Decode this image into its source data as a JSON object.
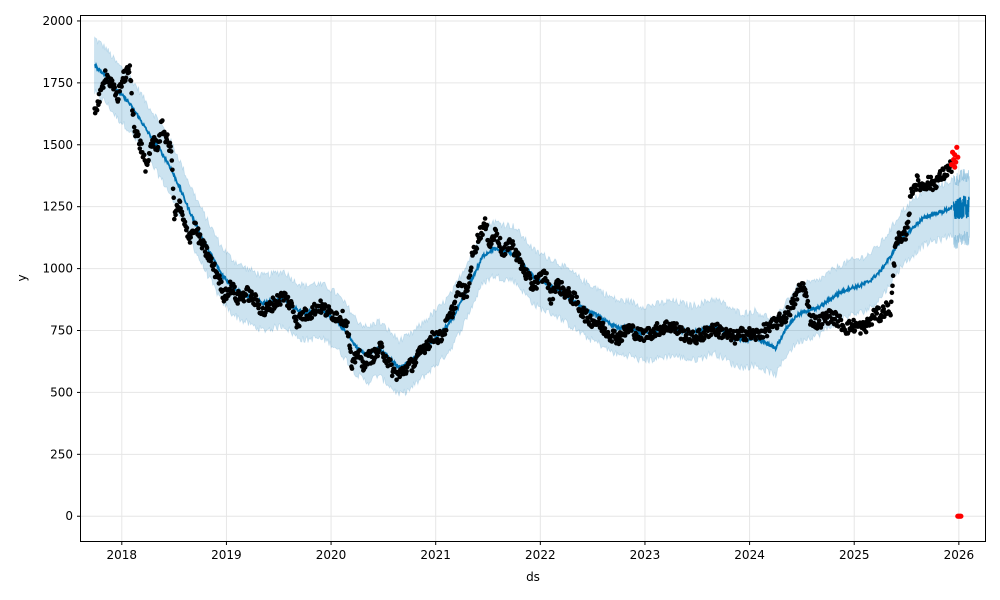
{
  "chart_data": {
    "type": "scatter",
    "title": "",
    "xlabel": "ds",
    "ylabel": "y",
    "xlim": [
      2017.61,
      2026.25
    ],
    "ylim": [
      -100,
      2020
    ],
    "grid": true,
    "x_ticks": [
      2018,
      2019,
      2020,
      2021,
      2022,
      2023,
      2024,
      2025,
      2026
    ],
    "x_tick_labels": [
      "2018",
      "2019",
      "2020",
      "2021",
      "2022",
      "2023",
      "2024",
      "2025",
      "2026"
    ],
    "y_ticks": [
      0,
      250,
      500,
      750,
      1000,
      1250,
      1500,
      1750,
      2000
    ],
    "y_tick_labels": [
      "0",
      "250",
      "500",
      "750",
      "1000",
      "1250",
      "1500",
      "1750",
      "2000"
    ],
    "colors": {
      "observed": "#000000",
      "outliers": "#ff0000",
      "forecast_line": "#0072b2",
      "interval_fill": "#0072b2",
      "grid": "#e6e6e6"
    },
    "observed_anchors": [
      [
        2017.74,
        1640
      ],
      [
        2017.8,
        1700
      ],
      [
        2017.84,
        1790
      ],
      [
        2017.9,
        1740
      ],
      [
        2017.96,
        1690
      ],
      [
        2018.0,
        1760
      ],
      [
        2018.05,
        1790
      ],
      [
        2018.08,
        1800
      ],
      [
        2018.1,
        1650
      ],
      [
        2018.13,
        1560
      ],
      [
        2018.2,
        1470
      ],
      [
        2018.24,
        1390
      ],
      [
        2018.28,
        1510
      ],
      [
        2018.35,
        1500
      ],
      [
        2018.38,
        1580
      ],
      [
        2018.44,
        1510
      ],
      [
        2018.48,
        1460
      ],
      [
        2018.5,
        1210
      ],
      [
        2018.55,
        1260
      ],
      [
        2018.6,
        1170
      ],
      [
        2018.65,
        1130
      ],
      [
        2018.7,
        1170
      ],
      [
        2018.76,
        1100
      ],
      [
        2018.82,
        1060
      ],
      [
        2018.88,
        1000
      ],
      [
        2018.93,
        960
      ],
      [
        2018.97,
        890
      ],
      [
        2019.05,
        930
      ],
      [
        2019.1,
        880
      ],
      [
        2019.2,
        900
      ],
      [
        2019.3,
        860
      ],
      [
        2019.35,
        820
      ],
      [
        2019.45,
        860
      ],
      [
        2019.55,
        890
      ],
      [
        2019.62,
        850
      ],
      [
        2019.68,
        780
      ],
      [
        2019.72,
        810
      ],
      [
        2019.8,
        820
      ],
      [
        2019.88,
        850
      ],
      [
        2019.95,
        830
      ],
      [
        2020.05,
        810
      ],
      [
        2020.12,
        800
      ],
      [
        2020.16,
        760
      ],
      [
        2020.2,
        590
      ],
      [
        2020.25,
        670
      ],
      [
        2020.3,
        610
      ],
      [
        2020.35,
        640
      ],
      [
        2020.42,
        650
      ],
      [
        2020.48,
        680
      ],
      [
        2020.55,
        620
      ],
      [
        2020.6,
        580
      ],
      [
        2020.65,
        570
      ],
      [
        2020.72,
        600
      ],
      [
        2020.8,
        620
      ],
      [
        2020.88,
        680
      ],
      [
        2020.95,
        710
      ],
      [
        2021.0,
        730
      ],
      [
        2021.05,
        720
      ],
      [
        2021.12,
        790
      ],
      [
        2021.18,
        850
      ],
      [
        2021.22,
        920
      ],
      [
        2021.3,
        900
      ],
      [
        2021.35,
        1050
      ],
      [
        2021.42,
        1140
      ],
      [
        2021.47,
        1180
      ],
      [
        2021.52,
        1100
      ],
      [
        2021.58,
        1150
      ],
      [
        2021.65,
        1050
      ],
      [
        2021.7,
        1110
      ],
      [
        2021.75,
        1080
      ],
      [
        2021.8,
        1030
      ],
      [
        2021.85,
        990
      ],
      [
        2021.92,
        930
      ],
      [
        2022.0,
        960
      ],
      [
        2022.05,
        980
      ],
      [
        2022.1,
        880
      ],
      [
        2022.15,
        940
      ],
      [
        2022.25,
        900
      ],
      [
        2022.32,
        880
      ],
      [
        2022.38,
        840
      ],
      [
        2022.45,
        800
      ],
      [
        2022.55,
        780
      ],
      [
        2022.65,
        740
      ],
      [
        2022.75,
        720
      ],
      [
        2022.85,
        760
      ],
      [
        2022.95,
        730
      ],
      [
        2023.05,
        740
      ],
      [
        2023.15,
        760
      ],
      [
        2023.25,
        770
      ],
      [
        2023.35,
        740
      ],
      [
        2023.45,
        720
      ],
      [
        2023.55,
        730
      ],
      [
        2023.65,
        760
      ],
      [
        2023.75,
        740
      ],
      [
        2023.85,
        720
      ],
      [
        2023.95,
        740
      ],
      [
        2024.05,
        730
      ],
      [
        2024.15,
        750
      ],
      [
        2024.25,
        780
      ],
      [
        2024.35,
        810
      ],
      [
        2024.42,
        860
      ],
      [
        2024.48,
        920
      ],
      [
        2024.52,
        930
      ],
      [
        2024.58,
        800
      ],
      [
        2024.65,
        780
      ],
      [
        2024.72,
        800
      ],
      [
        2024.78,
        810
      ],
      [
        2024.85,
        790
      ],
      [
        2024.92,
        760
      ],
      [
        2025.0,
        770
      ],
      [
        2025.08,
        760
      ],
      [
        2025.15,
        780
      ],
      [
        2025.2,
        820
      ],
      [
        2025.25,
        810
      ],
      [
        2025.3,
        840
      ],
      [
        2025.35,
        830
      ],
      [
        2025.4,
        1130
      ],
      [
        2025.45,
        1110
      ],
      [
        2025.5,
        1150
      ],
      [
        2025.55,
        1320
      ],
      [
        2025.6,
        1350
      ],
      [
        2025.65,
        1330
      ],
      [
        2025.7,
        1350
      ],
      [
        2025.75,
        1340
      ],
      [
        2025.8,
        1360
      ],
      [
        2025.85,
        1380
      ],
      [
        2025.9,
        1400
      ],
      [
        2025.94,
        1420
      ]
    ],
    "outliers": [
      [
        2025.93,
        1420
      ],
      [
        2025.94,
        1470
      ],
      [
        2025.95,
        1440
      ],
      [
        2025.96,
        1460
      ],
      [
        2025.97,
        1430
      ],
      [
        2025.98,
        1490
      ],
      [
        2025.99,
        1450
      ],
      [
        2025.96,
        1410
      ],
      [
        2025.99,
        0
      ],
      [
        2026.0,
        0
      ],
      [
        2026.01,
        0
      ],
      [
        2026.02,
        0
      ]
    ],
    "forecast": [
      [
        2017.74,
        1820
      ],
      [
        2017.85,
        1780
      ],
      [
        2017.95,
        1720
      ],
      [
        2018.05,
        1680
      ],
      [
        2018.15,
        1620
      ],
      [
        2018.25,
        1550
      ],
      [
        2018.35,
        1490
      ],
      [
        2018.45,
        1420
      ],
      [
        2018.55,
        1330
      ],
      [
        2018.65,
        1230
      ],
      [
        2018.75,
        1140
      ],
      [
        2018.85,
        1060
      ],
      [
        2018.95,
        980
      ],
      [
        2019.05,
        930
      ],
      [
        2019.15,
        900
      ],
      [
        2019.25,
        880
      ],
      [
        2019.35,
        860
      ],
      [
        2019.45,
        870
      ],
      [
        2019.55,
        880
      ],
      [
        2019.65,
        840
      ],
      [
        2019.75,
        820
      ],
      [
        2019.85,
        830
      ],
      [
        2019.95,
        820
      ],
      [
        2020.05,
        790
      ],
      [
        2020.15,
        740
      ],
      [
        2020.25,
        680
      ],
      [
        2020.35,
        650
      ],
      [
        2020.45,
        680
      ],
      [
        2020.55,
        640
      ],
      [
        2020.65,
        600
      ],
      [
        2020.75,
        620
      ],
      [
        2020.85,
        660
      ],
      [
        2020.95,
        700
      ],
      [
        2021.05,
        740
      ],
      [
        2021.15,
        790
      ],
      [
        2021.25,
        870
      ],
      [
        2021.35,
        960
      ],
      [
        2021.45,
        1050
      ],
      [
        2021.55,
        1080
      ],
      [
        2021.65,
        1070
      ],
      [
        2021.75,
        1060
      ],
      [
        2021.85,
        1010
      ],
      [
        2021.95,
        960
      ],
      [
        2022.05,
        940
      ],
      [
        2022.15,
        920
      ],
      [
        2022.25,
        890
      ],
      [
        2022.35,
        860
      ],
      [
        2022.45,
        830
      ],
      [
        2022.55,
        810
      ],
      [
        2022.65,
        780
      ],
      [
        2022.75,
        760
      ],
      [
        2022.85,
        760
      ],
      [
        2022.95,
        740
      ],
      [
        2023.05,
        740
      ],
      [
        2023.15,
        750
      ],
      [
        2023.25,
        760
      ],
      [
        2023.35,
        750
      ],
      [
        2023.45,
        740
      ],
      [
        2023.55,
        750
      ],
      [
        2023.65,
        770
      ],
      [
        2023.75,
        750
      ],
      [
        2023.85,
        720
      ],
      [
        2023.95,
        710
      ],
      [
        2024.05,
        720
      ],
      [
        2024.15,
        700
      ],
      [
        2024.25,
        680
      ],
      [
        2024.35,
        760
      ],
      [
        2024.45,
        810
      ],
      [
        2024.55,
        830
      ],
      [
        2024.65,
        840
      ],
      [
        2024.75,
        870
      ],
      [
        2024.85,
        900
      ],
      [
        2024.95,
        920
      ],
      [
        2025.05,
        930
      ],
      [
        2025.15,
        950
      ],
      [
        2025.25,
        990
      ],
      [
        2025.35,
        1050
      ],
      [
        2025.45,
        1120
      ],
      [
        2025.55,
        1160
      ],
      [
        2025.65,
        1200
      ],
      [
        2025.75,
        1220
      ],
      [
        2025.85,
        1230
      ],
      [
        2025.94,
        1250
      ]
    ],
    "forecast_future": [
      [
        2025.95,
        1230
      ],
      [
        2026.0,
        1240
      ],
      [
        2026.05,
        1250
      ],
      [
        2026.1,
        1245
      ]
    ],
    "interval_half_width": 110,
    "future_interval_half_width": 125
  }
}
